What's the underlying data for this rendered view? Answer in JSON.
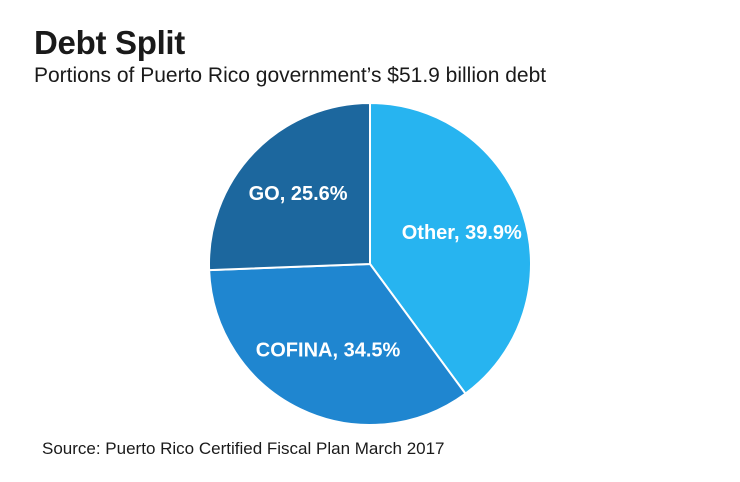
{
  "chart_data": {
    "type": "pie",
    "title": "Debt Split",
    "subtitle": "Portions of Puerto Rico government’s $51.9 billion debt",
    "slices": [
      {
        "label": "Other, 39.9%",
        "category": "Other",
        "value": 39.9,
        "color": "#27b4f0"
      },
      {
        "label": "COFINA, 34.5%",
        "category": "COFINA",
        "value": 34.5,
        "color": "#1f86d0"
      },
      {
        "label": "GO, 25.6%",
        "category": "GO",
        "value": 25.6,
        "color": "#1c679e"
      }
    ],
    "source": "Source: Puerto Rico Certified Fiscal Plan March 2017"
  }
}
